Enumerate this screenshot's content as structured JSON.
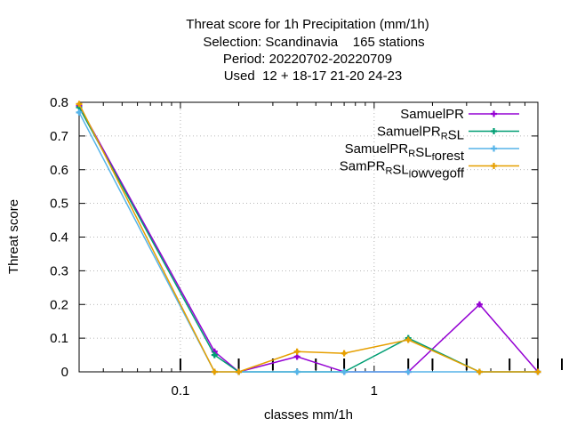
{
  "chart_data": {
    "type": "line",
    "title_lines": [
      "Threat score  for 1h Precipitation (mm/1h)",
      "Selection: Scandinavia    165 stations",
      "Period: 20220702-20220709",
      "Used  12 + 18-17 21-20 24-23"
    ],
    "xlabel": "classes mm/1h",
    "ylabel": "Threat score",
    "x_scale": "log",
    "xlim": [
      0.03,
      7.0
    ],
    "ylim": [
      0,
      0.8
    ],
    "x_major_ticks": [
      {
        "v": 0.1,
        "label": "0.1"
      },
      {
        "v": 1,
        "label": "1"
      }
    ],
    "x_minor_ticks": [
      0.04,
      0.05,
      0.06,
      0.07,
      0.08,
      0.09,
      0.2,
      0.3,
      0.4,
      0.5,
      0.6,
      0.7,
      0.8,
      0.9,
      2,
      3,
      4,
      5,
      6,
      7
    ],
    "y_ticks": [
      {
        "v": 0,
        "label": "0"
      },
      {
        "v": 0.1,
        "label": "0.1"
      },
      {
        "v": 0.2,
        "label": "0.2"
      },
      {
        "v": 0.3,
        "label": "0.3"
      },
      {
        "v": 0.4,
        "label": "0.4"
      },
      {
        "v": 0.5,
        "label": "0.5"
      },
      {
        "v": 0.6,
        "label": "0.6"
      },
      {
        "v": 0.7,
        "label": "0.7"
      },
      {
        "v": 0.8,
        "label": "0.8"
      }
    ],
    "x": [
      0.03,
      0.15,
      0.2,
      0.4,
      0.7,
      1.5,
      3.5,
      7.0
    ],
    "grid": true,
    "legend_position": "top-right",
    "series": [
      {
        "name": "SamuelPR",
        "legend": {
          "base": "SamuelPR",
          "sub": "",
          "rest": ""
        },
        "color": "#9400d3",
        "values": [
          0.79,
          0.06,
          0.0,
          0.045,
          0.0,
          0.0,
          0.2,
          0.0
        ]
      },
      {
        "name": "SamuelPR_RSL",
        "legend": {
          "base": "SamuelPR",
          "sub": "R",
          "rest": "SL"
        },
        "color": "#009e73",
        "values": [
          0.785,
          0.05,
          0.0,
          0.0,
          0.0,
          0.1,
          0.0,
          0.0
        ]
      },
      {
        "name": "SamuelPR_RSL_forest",
        "legend": {
          "base": "SamuelPR",
          "sub": "R",
          "rest": "SL",
          "sub2": "f",
          "rest2": "orest"
        },
        "color": "#56b4e9",
        "values": [
          0.77,
          0.0,
          0.0,
          0.0,
          0.0,
          0.0,
          0.0,
          0.0
        ]
      },
      {
        "name": "SamPR_RSL_lowvegoff",
        "legend": {
          "base": "SamPR",
          "sub": "R",
          "rest": "SL",
          "sub2": "l",
          "rest2": "owvegoff"
        },
        "color": "#e69f00",
        "values": [
          0.795,
          0.0,
          0.0,
          0.06,
          0.055,
          0.095,
          0.0,
          0.0
        ]
      }
    ],
    "extra_black_ticks_x": [
      0.1,
      0.2,
      0.3,
      0.5,
      0.7,
      1.5,
      2,
      3,
      5,
      7,
      10
    ]
  }
}
